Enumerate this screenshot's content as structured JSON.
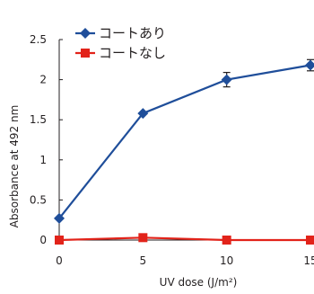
{
  "chart_data": {
    "type": "line",
    "xlabel": "UV dose (J/m²)",
    "ylabel": "Absorbance at 492 nm",
    "x": [
      0,
      5,
      10,
      15
    ],
    "xticks": [
      "0",
      "5",
      "10",
      "15"
    ],
    "yticks": [
      "0",
      "0.5",
      "1",
      "1.5",
      "2",
      "2.5"
    ],
    "xlim": [
      0,
      15
    ],
    "ylim": [
      0,
      2.5
    ],
    "grid": false,
    "legend_position": "top-left",
    "series": [
      {
        "name": "コートあり",
        "color": "#1f4e9a",
        "marker": "diamond",
        "values": [
          0.27,
          1.58,
          2.0,
          2.18
        ],
        "errors": [
          0.0,
          0.0,
          0.09,
          0.07
        ]
      },
      {
        "name": "コートなし",
        "color": "#e2231a",
        "marker": "square",
        "values": [
          0.0,
          0.03,
          0.0,
          0.0
        ],
        "errors": [
          0.0,
          0.02,
          0.0,
          0.0
        ]
      }
    ]
  }
}
